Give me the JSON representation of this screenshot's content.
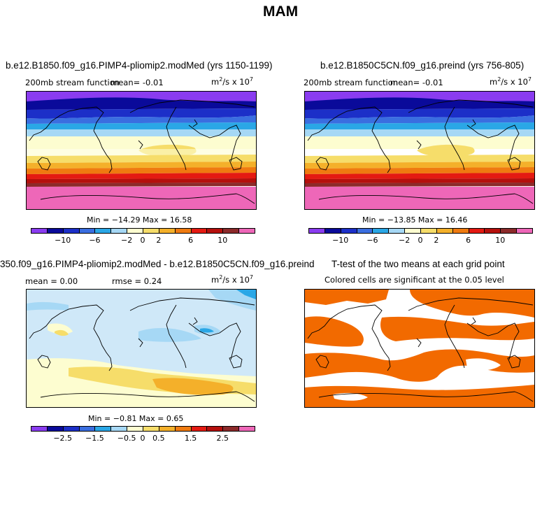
{
  "figure": {
    "title": "MAM"
  },
  "panels": [
    {
      "id": "p1",
      "title": "b.e12.B1850.f09_g16.PIMP4-pliomip2.modMed (yrs 1150-1199)",
      "left_label": "200mb stream function",
      "mid_label": "mean=   -0.01",
      "units_base": "m",
      "units_sup1": "2",
      "units_mid": "/s x 10",
      "units_sup2": "7",
      "minmax": "Min = −14.29  Max =   16.58",
      "colorbar_ticks": [
        "−10",
        "−6",
        "−2",
        "0",
        "2",
        "6",
        "10"
      ]
    },
    {
      "id": "p2",
      "title": "b.e12.B1850C5CN.f09_g16.preind (yrs 756-805)",
      "left_label": "200mb stream function",
      "mid_label": "mean=   -0.01",
      "units_base": "m",
      "units_sup1": "2",
      "units_mid": "/s x 10",
      "units_sup2": "7",
      "minmax": "Min = −13.85  Max =   16.46",
      "colorbar_ticks": [
        "−10",
        "−6",
        "−2",
        "0",
        "2",
        "6",
        "10"
      ]
    },
    {
      "id": "p3",
      "title": "350.f09_g16.PIMP4-pliomip2.modMed - b.e12.B1850C5CN.f09_g16.preind",
      "left_label": "mean =   0.00",
      "mid_label": "rmse =    0.24",
      "units_base": "m",
      "units_sup1": "2",
      "units_mid": "/s x 10",
      "units_sup2": "7",
      "minmax": "Min = −0.81  Max =   0.65",
      "colorbar_ticks": [
        "−2.5",
        "−1.5",
        "−0.5",
        "0",
        "0.5",
        "1.5",
        "2.5"
      ]
    },
    {
      "id": "p4",
      "title": "T-test of the two means at each grid point",
      "subtitle": "Colored cells are significant at the 0.05 level"
    }
  ],
  "colors": {
    "colorbar": [
      "#8a3cf0",
      "#0a0a9a",
      "#1c2fc8",
      "#3a6ee0",
      "#2aa7e6",
      "#a6d8f5",
      "#fdfdd0",
      "#f6dd6a",
      "#f4b02a",
      "#ef7a10",
      "#e41a12",
      "#b5100d",
      "#8c2a2a",
      "#ee67b8"
    ],
    "significant": "#f26a00"
  }
}
